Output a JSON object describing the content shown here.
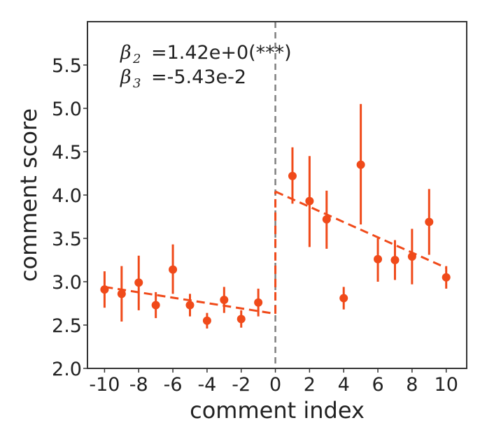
{
  "chart_data": {
    "type": "scatter",
    "xlabel": "comment index",
    "ylabel": "comment score",
    "xlim": [
      -11,
      11.2
    ],
    "ylim": [
      2.0,
      6.0
    ],
    "x_ticks": [
      "-10",
      "-8",
      "-6",
      "-4",
      "-2",
      "0",
      "2",
      "4",
      "6",
      "8",
      "10"
    ],
    "y_ticks": [
      "2.0",
      "2.5",
      "3.0",
      "3.5",
      "4.0",
      "4.5",
      "5.0",
      "5.5"
    ],
    "grid": false,
    "cutoff_x": 0,
    "colors": {
      "points": "#f04a1a",
      "cutoff_line": "#808080",
      "axes": "#333333"
    },
    "points": [
      {
        "x": -10,
        "y": 2.91,
        "ci": [
          2.7,
          3.12
        ]
      },
      {
        "x": -9,
        "y": 2.86,
        "ci": [
          2.54,
          3.18
        ]
      },
      {
        "x": -8,
        "y": 2.99,
        "ci": [
          2.67,
          3.3
        ]
      },
      {
        "x": -7,
        "y": 2.73,
        "ci": [
          2.58,
          2.88
        ]
      },
      {
        "x": -6,
        "y": 3.14,
        "ci": [
          2.86,
          3.43
        ]
      },
      {
        "x": -5,
        "y": 2.73,
        "ci": [
          2.6,
          2.86
        ]
      },
      {
        "x": -4,
        "y": 2.55,
        "ci": [
          2.46,
          2.64
        ]
      },
      {
        "x": -3,
        "y": 2.79,
        "ci": [
          2.64,
          2.94
        ]
      },
      {
        "x": -2,
        "y": 2.57,
        "ci": [
          2.47,
          2.67
        ]
      },
      {
        "x": -1,
        "y": 2.76,
        "ci": [
          2.6,
          2.92
        ]
      },
      {
        "x": 1,
        "y": 4.22,
        "ci": [
          3.9,
          4.55
        ]
      },
      {
        "x": 2,
        "y": 3.93,
        "ci": [
          3.4,
          4.45
        ]
      },
      {
        "x": 3,
        "y": 3.72,
        "ci": [
          3.38,
          4.05
        ]
      },
      {
        "x": 4,
        "y": 2.81,
        "ci": [
          2.68,
          2.94
        ]
      },
      {
        "x": 5,
        "y": 4.35,
        "ci": [
          3.66,
          5.05
        ]
      },
      {
        "x": 6,
        "y": 3.26,
        "ci": [
          3.0,
          3.5
        ]
      },
      {
        "x": 7,
        "y": 3.25,
        "ci": [
          3.02,
          3.48
        ]
      },
      {
        "x": 8,
        "y": 3.29,
        "ci": [
          2.97,
          3.61
        ]
      },
      {
        "x": 9,
        "y": 3.69,
        "ci": [
          3.31,
          4.07
        ]
      },
      {
        "x": 10,
        "y": 3.05,
        "ci": [
          2.92,
          3.18
        ]
      }
    ],
    "fit_lines": [
      {
        "x": [
          -10,
          0
        ],
        "y": [
          2.94,
          2.63
        ]
      },
      {
        "x": [
          0,
          10
        ],
        "y": [
          4.04,
          3.16
        ]
      }
    ],
    "annotations": [
      {
        "symbol": "β",
        "subscript": "2",
        "text": "=1.42e+0(***)"
      },
      {
        "symbol": "β",
        "subscript": "3",
        "text": "=-5.43e-2"
      }
    ]
  }
}
